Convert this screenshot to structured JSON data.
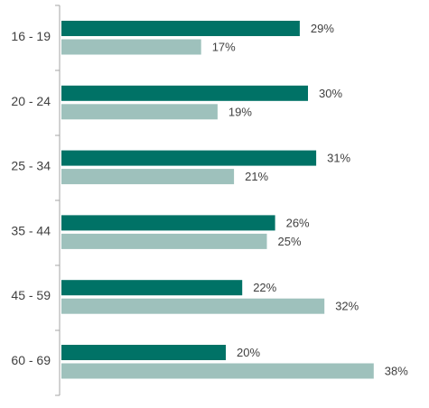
{
  "colors": {
    "series_1": "#007266",
    "series_2": "#9ec1bc",
    "axis": "#a6a6a6",
    "text": "#404040"
  },
  "chart_data": {
    "type": "bar",
    "orientation": "horizontal",
    "categories": [
      "16 - 19",
      "20 - 24",
      "25 - 34",
      "35 - 44",
      "45 - 59",
      "60 - 69"
    ],
    "series": [
      {
        "values": [
          29,
          30,
          31,
          26,
          22,
          20
        ],
        "labels": [
          "29%",
          "30%",
          "31%",
          "26%",
          "22%",
          "20%"
        ]
      },
      {
        "values": [
          17,
          19,
          21,
          25,
          32,
          38
        ],
        "labels": [
          "17%",
          "19%",
          "21%",
          "25%",
          "32%",
          "38%"
        ]
      }
    ],
    "xlim": [
      0,
      40
    ],
    "grid": false,
    "legend": "none"
  }
}
